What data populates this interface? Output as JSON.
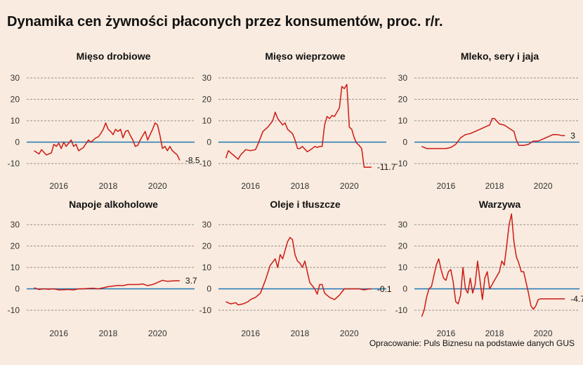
{
  "title": "Dynamika cen żywności płaconych przez konsumentów, proc. r/r.",
  "source": "Opracowanie: Puls Biznesu na podstawie danych GUS",
  "colors": {
    "line": "#cc1a14",
    "zero": "#1f77b4",
    "grid": "#777777",
    "background": "#f9ebdf"
  },
  "chart_data": [
    {
      "type": "line",
      "title": "Mięso drobiowe",
      "ylim": [
        -15,
        32
      ],
      "yticks": [
        -10,
        0,
        10,
        20,
        30
      ],
      "xlim": [
        2014.7,
        2021.5
      ],
      "xticks": [
        2016,
        2018,
        2020
      ],
      "end_label": "-8.5",
      "x": [
        2015.0,
        2015.2,
        2015.3,
        2015.5,
        2015.7,
        2015.8,
        2015.9,
        2016.0,
        2016.1,
        2016.2,
        2016.3,
        2016.4,
        2016.5,
        2016.6,
        2016.7,
        2016.8,
        2017.0,
        2017.2,
        2017.3,
        2017.5,
        2017.6,
        2017.7,
        2017.8,
        2017.9,
        2018.0,
        2018.1,
        2018.2,
        2018.3,
        2018.4,
        2018.5,
        2018.6,
        2018.7,
        2018.8,
        2018.9,
        2019.0,
        2019.1,
        2019.2,
        2019.3,
        2019.4,
        2019.5,
        2019.6,
        2019.7,
        2019.8,
        2019.9,
        2020.0,
        2020.1,
        2020.2,
        2020.3,
        2020.4,
        2020.5,
        2020.6,
        2020.7,
        2020.8,
        2020.9
      ],
      "values": [
        -4,
        -5.5,
        -3.5,
        -6,
        -5,
        -1,
        -2,
        -0.5,
        -3,
        0,
        -2,
        -0.5,
        1,
        -2,
        -1,
        -4,
        -2.5,
        1,
        0,
        2,
        2.5,
        4,
        6,
        9,
        6,
        5,
        3.5,
        6,
        5,
        6,
        2,
        5,
        5.5,
        3,
        1,
        -2,
        -1.5,
        1,
        3,
        5,
        1,
        3.5,
        6,
        9,
        8,
        3,
        -3,
        -2,
        -4,
        -2,
        -4,
        -5,
        -6,
        -8.5
      ]
    },
    {
      "type": "line",
      "title": "Mięso wieprzowe",
      "ylim": [
        -15,
        32
      ],
      "yticks": [
        -10,
        0,
        10,
        20,
        30
      ],
      "xlim": [
        2014.7,
        2021.5
      ],
      "xticks": [
        2016,
        2018,
        2020
      ],
      "end_label": "-11.7",
      "x": [
        2015.0,
        2015.1,
        2015.2,
        2015.3,
        2015.5,
        2015.6,
        2015.8,
        2016.0,
        2016.2,
        2016.3,
        2016.5,
        2016.6,
        2016.7,
        2016.9,
        2017.0,
        2017.1,
        2017.3,
        2017.4,
        2017.5,
        2017.6,
        2017.7,
        2017.8,
        2017.9,
        2018.0,
        2018.1,
        2018.3,
        2018.5,
        2018.6,
        2018.7,
        2018.8,
        2018.9,
        2019.0,
        2019.1,
        2019.2,
        2019.3,
        2019.4,
        2019.5,
        2019.6,
        2019.7,
        2019.8,
        2019.9,
        2020.0,
        2020.1,
        2020.2,
        2020.3,
        2020.4,
        2020.5,
        2020.6,
        2020.7,
        2020.8,
        2020.9
      ],
      "values": [
        -7.5,
        -4,
        -5,
        -6,
        -8,
        -6,
        -3.5,
        -4,
        -3.5,
        -1,
        5,
        6,
        7,
        10,
        14,
        11,
        8,
        9,
        6,
        5,
        4,
        1,
        -3,
        -3,
        -2,
        -4.5,
        -3,
        -2,
        -2.5,
        -2,
        -2,
        8,
        12,
        11,
        12.5,
        12,
        14,
        16,
        26,
        25,
        27,
        7,
        6,
        2,
        -0.5,
        -1.5,
        -3,
        -11.7,
        -11.7,
        -11.7,
        -11.7
      ]
    },
    {
      "type": "line",
      "title": "Mleko, sery i jaja",
      "ylim": [
        -15,
        32
      ],
      "yticks": [
        -10,
        0,
        10,
        20,
        30
      ],
      "xlim": [
        2014.7,
        2021.5
      ],
      "xticks": [
        2016,
        2018,
        2020
      ],
      "end_label": "3",
      "x": [
        2015.0,
        2015.2,
        2015.4,
        2015.6,
        2015.8,
        2016.0,
        2016.2,
        2016.4,
        2016.6,
        2016.8,
        2017.0,
        2017.2,
        2017.4,
        2017.6,
        2017.8,
        2017.9,
        2018.0,
        2018.2,
        2018.4,
        2018.6,
        2018.8,
        2018.9,
        2019.0,
        2019.2,
        2019.4,
        2019.6,
        2019.8,
        2020.0,
        2020.2,
        2020.4,
        2020.6,
        2020.8,
        2020.9
      ],
      "values": [
        -2,
        -3,
        -3,
        -3,
        -3,
        -3,
        -2.5,
        -1,
        2,
        3.5,
        4,
        5,
        6,
        7,
        8,
        11,
        11,
        8.5,
        8,
        6.5,
        5,
        1,
        -1.5,
        -1.5,
        -1,
        0.5,
        0.5,
        1.5,
        2.5,
        3.5,
        3.5,
        3,
        3
      ]
    },
    {
      "type": "line",
      "title": "Napoje alkoholowe",
      "ylim": [
        -15,
        32
      ],
      "yticks": [
        -10,
        0,
        10,
        20,
        30
      ],
      "xlim": [
        2014.7,
        2021.5
      ],
      "xticks": [
        2016,
        2018,
        2020
      ],
      "end_label": "3.7",
      "x": [
        2015.0,
        2015.2,
        2015.4,
        2015.6,
        2015.8,
        2016.0,
        2016.2,
        2016.4,
        2016.6,
        2016.8,
        2017.0,
        2017.2,
        2017.4,
        2017.6,
        2017.8,
        2018.0,
        2018.2,
        2018.4,
        2018.6,
        2018.8,
        2019.0,
        2019.2,
        2019.4,
        2019.6,
        2019.8,
        2020.0,
        2020.2,
        2020.4,
        2020.6,
        2020.8,
        2020.9
      ],
      "values": [
        0.5,
        -0.3,
        0,
        -0.2,
        0,
        -0.5,
        -0.4,
        -0.3,
        -0.5,
        0,
        0,
        0.2,
        0.3,
        0,
        0.5,
        1,
        1.3,
        1.6,
        1.5,
        2,
        2,
        2,
        2.3,
        1.5,
        2,
        3,
        4,
        3.5,
        3.7,
        3.8,
        3.7
      ]
    },
    {
      "type": "line",
      "title": "Oleje i tłuszcze",
      "ylim": [
        -15,
        32
      ],
      "yticks": [
        -10,
        0,
        10,
        20,
        30
      ],
      "xlim": [
        2014.7,
        2021.5
      ],
      "xticks": [
        2016,
        2018,
        2020
      ],
      "end_label": "-0.1",
      "x": [
        2015.0,
        2015.2,
        2015.4,
        2015.5,
        2015.7,
        2015.9,
        2016.0,
        2016.2,
        2016.4,
        2016.6,
        2016.8,
        2017.0,
        2017.1,
        2017.2,
        2017.3,
        2017.5,
        2017.6,
        2017.7,
        2017.8,
        2017.9,
        2018.0,
        2018.1,
        2018.2,
        2018.4,
        2018.6,
        2018.7,
        2018.8,
        2018.9,
        2019.0,
        2019.2,
        2019.4,
        2019.6,
        2019.8,
        2020.0,
        2020.2,
        2020.4,
        2020.6,
        2020.8,
        2020.9
      ],
      "values": [
        -6,
        -7,
        -6.5,
        -7.5,
        -7,
        -6,
        -5,
        -4,
        -2,
        4,
        11,
        14,
        10,
        16,
        14,
        22,
        24,
        23,
        16,
        13,
        12,
        10,
        13,
        3,
        0,
        -2.5,
        2,
        2,
        -2,
        -4,
        -5,
        -3,
        0,
        0,
        0,
        0,
        -0.5,
        0,
        -0.1
      ]
    },
    {
      "type": "line",
      "title": "Warzywa",
      "ylim": [
        -15,
        37
      ],
      "yticks": [
        -10,
        0,
        10,
        20,
        30
      ],
      "xlim": [
        2014.7,
        2021.5
      ],
      "xticks": [
        2016,
        2018,
        2020
      ],
      "end_label": "-4.7",
      "x": [
        2015.0,
        2015.1,
        2015.2,
        2015.3,
        2015.4,
        2015.6,
        2015.7,
        2015.8,
        2015.9,
        2016.0,
        2016.1,
        2016.2,
        2016.3,
        2016.4,
        2016.5,
        2016.6,
        2016.7,
        2016.8,
        2016.9,
        2017.0,
        2017.1,
        2017.2,
        2017.3,
        2017.5,
        2017.6,
        2017.7,
        2017.8,
        2017.9,
        2018.0,
        2018.1,
        2018.2,
        2018.3,
        2018.4,
        2018.5,
        2018.6,
        2018.7,
        2018.8,
        2018.9,
        2019.0,
        2019.1,
        2019.2,
        2019.3,
        2019.4,
        2019.5,
        2019.6,
        2019.7,
        2019.8,
        2019.9,
        2020.0,
        2020.1,
        2020.2,
        2020.3,
        2020.4,
        2020.5,
        2020.6,
        2020.7,
        2020.8,
        2020.9
      ],
      "values": [
        -13,
        -10,
        -4,
        0,
        1,
        11,
        14,
        9,
        5,
        4,
        8,
        9,
        3,
        -6,
        -7,
        -3,
        10,
        0,
        -2,
        5,
        -2,
        2,
        13,
        -5,
        5,
        8,
        0,
        2,
        4,
        6,
        8,
        13,
        11,
        20,
        30,
        35,
        22,
        15,
        12,
        8,
        8,
        3,
        -2,
        -8,
        -9.5,
        -8,
        -5,
        -4.7,
        -4.7,
        -4.7,
        -4.7,
        -4.7,
        -4.7,
        -4.7,
        -4.7,
        -4.7,
        -4.7,
        -4.7
      ]
    }
  ]
}
